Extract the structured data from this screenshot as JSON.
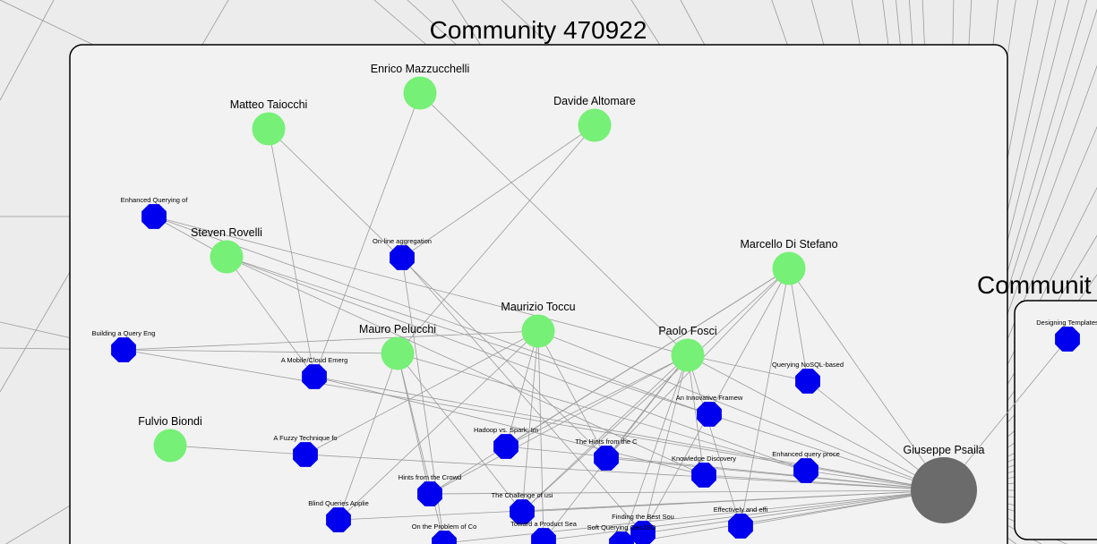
{
  "communities": [
    {
      "id": "c1",
      "title": "Community 470922"
    },
    {
      "id": "c2",
      "title": "Communit"
    }
  ],
  "people": [
    {
      "id": "mazz",
      "label": "Enrico Mazzucchelli"
    },
    {
      "id": "taio",
      "label": "Matteo Taiocchi"
    },
    {
      "id": "alto",
      "label": "Davide Altomare"
    },
    {
      "id": "rove",
      "label": "Steven Rovelli"
    },
    {
      "id": "dist",
      "label": "Marcello Di Stefano"
    },
    {
      "id": "tocc",
      "label": "Maurizio Toccu"
    },
    {
      "id": "pelu",
      "label": "Mauro Pelucchi"
    },
    {
      "id": "fosc",
      "label": "Paolo Fosci"
    },
    {
      "id": "biond",
      "label": "Fulvio Biondi"
    }
  ],
  "hub": {
    "id": "psai",
    "label": "Giuseppe Psaila"
  },
  "papers": [
    {
      "id": "p1",
      "label": "Enhanced Querying of"
    },
    {
      "id": "p2",
      "label": "On-line aggregation"
    },
    {
      "id": "p3",
      "label": "Building a Query Eng"
    },
    {
      "id": "p4",
      "label": "A Mobile/Cloud Emerg"
    },
    {
      "id": "p5",
      "label": "Querying NoSQL-based"
    },
    {
      "id": "p6",
      "label": "An Innovative Framew"
    },
    {
      "id": "p7",
      "label": "A Fuzzy Technique fo"
    },
    {
      "id": "p8",
      "label": "Hadoop vs. Spark: Im"
    },
    {
      "id": "p9",
      "label": "The Hints from the C"
    },
    {
      "id": "p10",
      "label": "Knowledge Discovery"
    },
    {
      "id": "p11",
      "label": "Enhanced query proce"
    },
    {
      "id": "p12",
      "label": "Hints from the Crowd"
    },
    {
      "id": "p13",
      "label": "The Challenge of usi"
    },
    {
      "id": "p14",
      "label": "Blind Queries Applie"
    },
    {
      "id": "p15",
      "label": "Finding the Best Sou"
    },
    {
      "id": "p16",
      "label": "Effectively and effi"
    },
    {
      "id": "p17",
      "label": "On the Problem of Co"
    },
    {
      "id": "p18",
      "label": "Toward a Product Sea"
    },
    {
      "id": "p19",
      "label": "Soft Querying GeoJSO"
    },
    {
      "id": "p20",
      "label": "Designing Templates"
    }
  ],
  "colors": {
    "person": "#76f076",
    "paper": "#0000ee",
    "hub": "#6b6b6b",
    "edge": "#9a9a9a"
  }
}
